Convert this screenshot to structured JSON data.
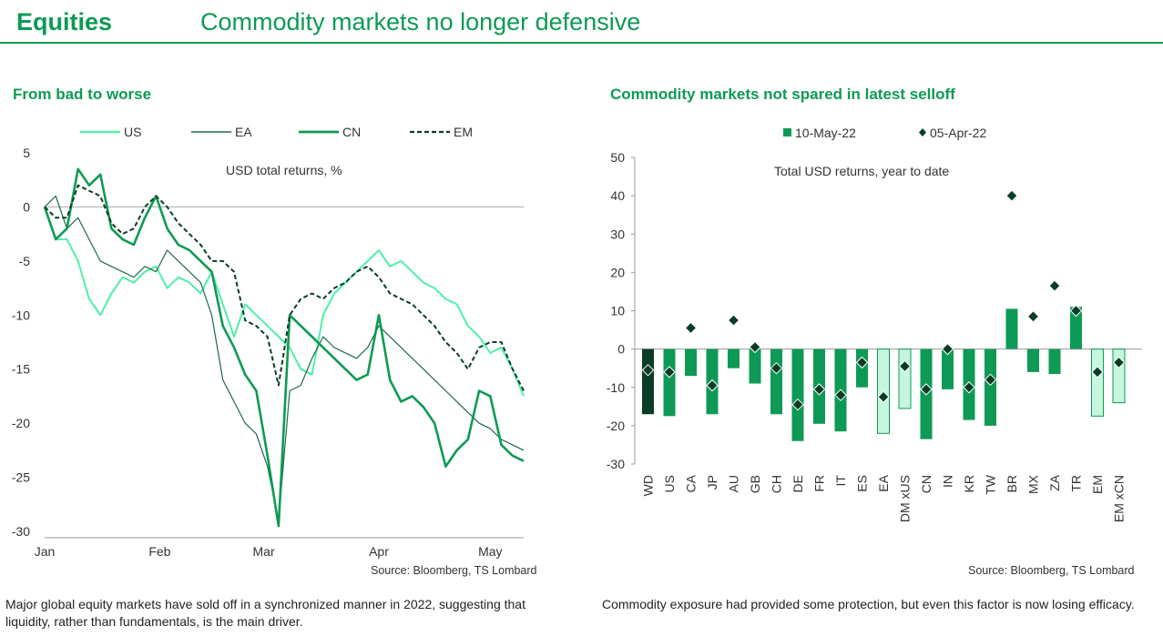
{
  "header": {
    "section": "Equities",
    "title": "Commodity markets no longer defensive"
  },
  "left": {
    "title": "From bad to worse",
    "source": "Source: Bloomberg, TS Lombard",
    "caption": "Major global equity markets have sold off in a synchronized manner in 2022, suggesting that liquidity, rather than fundamentals, is the main driver."
  },
  "right": {
    "title": "Commodity markets not spared in latest selloff",
    "source": "Source: Bloomberg, TS Lombard",
    "caption": "Commodity exposure had provided some protection, but even this factor is now losing efficacy."
  },
  "colors": {
    "us": "#4ff0a8",
    "ea": "#1d6b46",
    "cn": "#0e9a55",
    "em": "#0b3d26",
    "bar": "#0e9a55",
    "bar_light": "#c6f6de",
    "bar_dark": "#0b3d26",
    "diamond": "#0b3d26"
  },
  "chart_data": [
    {
      "type": "line",
      "annotation": "USD total returns, %",
      "ylim": [
        -30,
        5
      ],
      "yticks": [
        "5",
        "0",
        "-5",
        "-10",
        "-15",
        "-20",
        "-25",
        "-30"
      ],
      "xticks": [
        "Jan",
        "Feb",
        "Mar",
        "Apr",
        "May"
      ],
      "x": [
        0,
        3,
        6,
        9,
        12,
        15,
        18,
        21,
        24,
        27,
        30,
        33,
        36,
        39,
        42,
        45,
        48,
        51,
        54,
        57,
        60,
        63,
        66,
        69,
        72,
        75,
        78,
        81,
        84,
        87,
        90,
        93,
        96,
        99,
        102,
        105,
        108,
        111,
        114,
        117,
        120,
        123,
        126,
        129
      ],
      "series": [
        {
          "name": "US",
          "values": [
            0,
            -3,
            -3,
            -5,
            -8.5,
            -10,
            -8,
            -6.5,
            -7,
            -6,
            -5.5,
            -7.5,
            -6.5,
            -7,
            -8,
            -6,
            -9,
            -12,
            -9,
            -10,
            -11,
            -12,
            -13,
            -15,
            -15.5,
            -10,
            -8,
            -7,
            -6,
            -5,
            -4,
            -5.5,
            -5,
            -6,
            -7,
            -7.5,
            -8.5,
            -9,
            -11,
            -12,
            -13.5,
            -13,
            -15,
            -17.5
          ]
        },
        {
          "name": "EA",
          "values": [
            0,
            1,
            -2,
            -1,
            -3,
            -5,
            -5.5,
            -6,
            -6.5,
            -5.5,
            -6,
            -4,
            -5,
            -6,
            -7,
            -10,
            -16,
            -18,
            -20,
            -21,
            -24,
            -29,
            -17,
            -16.5,
            -14,
            -12,
            -13,
            -13.5,
            -14,
            -13,
            -11,
            -12,
            -13,
            -14,
            -15,
            -16,
            -17,
            -18,
            -19,
            -20,
            -20.5,
            -21.5,
            -22,
            -22.5
          ]
        },
        {
          "name": "CN",
          "values": [
            0,
            -3,
            -2,
            3.5,
            2,
            3,
            -2,
            -3,
            -3.5,
            -1,
            1,
            -2,
            -3.5,
            -4,
            -5,
            -6,
            -11,
            -13,
            -15.5,
            -17,
            -23,
            -29.5,
            -10,
            -11,
            -12,
            -13,
            -14,
            -15,
            -16,
            -15.5,
            -10,
            -16,
            -18,
            -17.5,
            -18.5,
            -20,
            -24,
            -22.5,
            -21.5,
            -17,
            -17.5,
            -22,
            -23,
            -23.5
          ]
        },
        {
          "name": "EM",
          "values": [
            0,
            -1,
            -1,
            2,
            1.5,
            1,
            -1.5,
            -2.5,
            -2,
            0,
            1,
            0,
            -1.5,
            -2.5,
            -3.5,
            -5,
            -5,
            -6,
            -10.5,
            -11,
            -12,
            -16.5,
            -10,
            -8.5,
            -8,
            -8.5,
            -7.5,
            -7,
            -6,
            -5.5,
            -6.5,
            -8,
            -8.5,
            -9,
            -10,
            -11,
            -12.5,
            -13.5,
            -15,
            -13,
            -12.5,
            -12.5,
            -15,
            -17
          ]
        }
      ]
    },
    {
      "type": "bar",
      "annotation": "Total USD returns, year to date",
      "ylim": [
        -30,
        50
      ],
      "yticks": [
        "50",
        "40",
        "30",
        "20",
        "10",
        "0",
        "-10",
        "-20",
        "-30"
      ],
      "categories": [
        "WD",
        "US",
        "CA",
        "JP",
        "AU",
        "GB",
        "CH",
        "DE",
        "FR",
        "IT",
        "ES",
        "EA",
        "DM xUS",
        "CN",
        "IN",
        "KR",
        "TW",
        "BR",
        "MX",
        "ZA",
        "TR",
        "EM",
        "EM xCN"
      ],
      "series": [
        {
          "name": "10-May-22",
          "values": [
            -17,
            -17.5,
            -7,
            -17,
            -5,
            -9,
            -17,
            -24,
            -19.5,
            -21.5,
            -10,
            -22,
            -15.5,
            -23.5,
            -10.5,
            -18.5,
            -20,
            10.5,
            -6,
            -6.5,
            11,
            -17.5,
            -14
          ]
        },
        {
          "name": "05-Apr-22",
          "values": [
            -5.5,
            -6,
            5.5,
            -9.5,
            7.5,
            0.5,
            -5,
            -14.5,
            -10.5,
            -12,
            -3.5,
            -12.5,
            -4.5,
            -10.5,
            0,
            -10,
            -8,
            40,
            8.5,
            16.5,
            10,
            -6,
            -3.5
          ]
        }
      ],
      "light_categories": [
        "EA",
        "DM xUS",
        "EM",
        "EM xCN"
      ],
      "dark_categories": [
        "WD"
      ]
    }
  ]
}
